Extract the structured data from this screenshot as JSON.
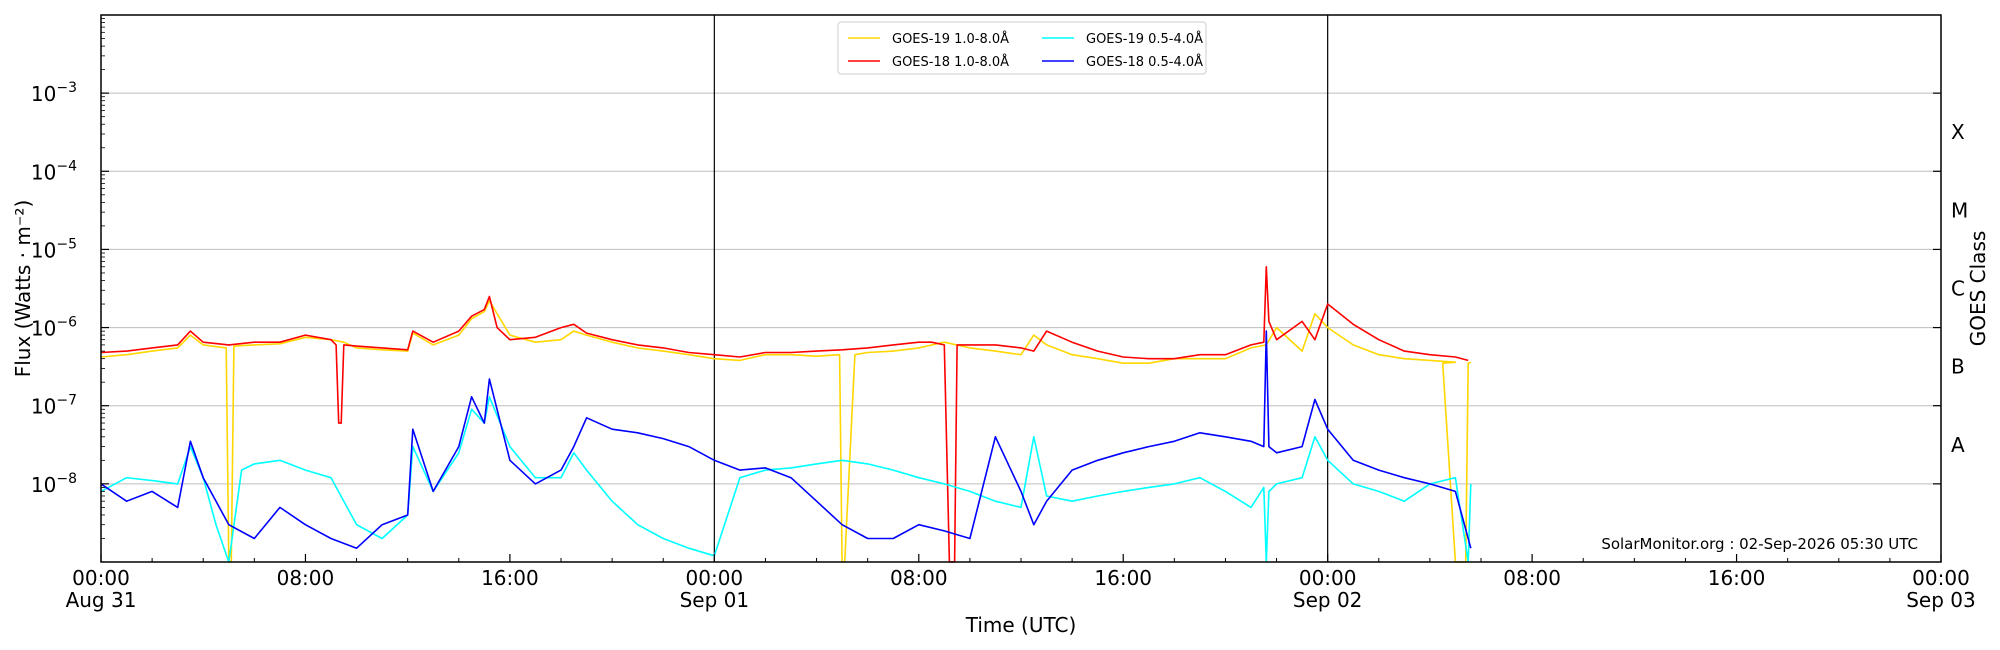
{
  "chart_data": {
    "type": "line",
    "xlabel": "Time (UTC)",
    "ylabel": "Flux (Watts · m⁻²)",
    "y2label": "GOES Class",
    "yscale": "log",
    "ylim": [
      1e-09,
      0.01
    ],
    "xlim_hours": [
      0,
      72
    ],
    "grid": "horizontal at decades",
    "legend_placement": "top-center",
    "credit": "SolarMonitor.org : 02-Sep-2026 05:30 UTC",
    "x_ticks": [
      {
        "hour": 0,
        "line1": "00:00",
        "line2": "Aug 31"
      },
      {
        "hour": 8,
        "line1": "08:00",
        "line2": ""
      },
      {
        "hour": 16,
        "line1": "16:00",
        "line2": ""
      },
      {
        "hour": 24,
        "line1": "00:00",
        "line2": "Sep 01"
      },
      {
        "hour": 32,
        "line1": "08:00",
        "line2": ""
      },
      {
        "hour": 40,
        "line1": "16:00",
        "line2": ""
      },
      {
        "hour": 48,
        "line1": "00:00",
        "line2": "Sep 02"
      },
      {
        "hour": 56,
        "line1": "08:00",
        "line2": ""
      },
      {
        "hour": 64,
        "line1": "16:00",
        "line2": ""
      },
      {
        "hour": 72,
        "line1": "00:00",
        "line2": "Sep 03"
      }
    ],
    "y_ticks": [
      {
        "exp": -8,
        "label": "10",
        "sup": "−8"
      },
      {
        "exp": -7,
        "label": "10",
        "sup": "−7"
      },
      {
        "exp": -6,
        "label": "10",
        "sup": "−6"
      },
      {
        "exp": -5,
        "label": "10",
        "sup": "−5"
      },
      {
        "exp": -4,
        "label": "10",
        "sup": "−4"
      },
      {
        "exp": -3,
        "label": "10",
        "sup": "−3"
      }
    ],
    "goes_classes": [
      {
        "label": "A",
        "exp": -7.5
      },
      {
        "label": "B",
        "exp": -6.5
      },
      {
        "label": "C",
        "exp": -5.5
      },
      {
        "label": "M",
        "exp": -4.5
      },
      {
        "label": "X",
        "exp": -3.5
      }
    ],
    "day_boundaries_hours": [
      24,
      48
    ],
    "series": [
      {
        "name": "GOES-19 1.0-8.0Å",
        "color": "#ffd700",
        "x": [
          0,
          1,
          2,
          3,
          3.5,
          4,
          4.9,
          5.0,
          5.1,
          5.2,
          6,
          7,
          8,
          9,
          9.5,
          10,
          11,
          12,
          12.2,
          13,
          14,
          14.5,
          15,
          15.2,
          16,
          17,
          18,
          18.5,
          19,
          20,
          21,
          22,
          23,
          24,
          25,
          26,
          27,
          28,
          28.9,
          29.0,
          29.1,
          29.5,
          30,
          31,
          32,
          33,
          34,
          35,
          36,
          36.5,
          37,
          38,
          39,
          40,
          41,
          42,
          43,
          44,
          45,
          45.6,
          46,
          47,
          47.5,
          48,
          49,
          50,
          51,
          52,
          53,
          52.5,
          53.0,
          53.4,
          53.5,
          53.6
        ],
        "y": [
          4.2e-07,
          4.5e-07,
          5e-07,
          5.5e-07,
          8e-07,
          6e-07,
          5.5e-07,
          1e-09,
          1e-09,
          5.8e-07,
          6e-07,
          6.2e-07,
          7.5e-07,
          7e-07,
          6.5e-07,
          5.5e-07,
          5.2e-07,
          5e-07,
          8.5e-07,
          6e-07,
          8e-07,
          1.3e-06,
          1.6e-06,
          2.2e-06,
          8e-07,
          6.5e-07,
          7e-07,
          9e-07,
          8e-07,
          6.5e-07,
          5.5e-07,
          5e-07,
          4.5e-07,
          4e-07,
          3.8e-07,
          4.5e-07,
          4.5e-07,
          4.3e-07,
          4.5e-07,
          1e-09,
          1e-09,
          4.5e-07,
          4.8e-07,
          5e-07,
          5.5e-07,
          6.5e-07,
          5.5e-07,
          5e-07,
          4.5e-07,
          8e-07,
          6e-07,
          4.5e-07,
          4e-07,
          3.5e-07,
          3.5e-07,
          4e-07,
          4e-07,
          4e-07,
          5.5e-07,
          6e-07,
          1e-06,
          5e-07,
          1.5e-06,
          1e-06,
          6e-07,
          4.5e-07,
          4e-07,
          3.8e-07,
          3.6e-07,
          3.5e-07,
          1e-09,
          1e-09,
          3.5e-07,
          3.6e-07
        ]
      },
      {
        "name": "GOES-18 1.0-8.0Å",
        "color": "#ff0000",
        "x": [
          0,
          1,
          2,
          3,
          3.5,
          4,
          5,
          6,
          7,
          8,
          9,
          9.2,
          9.3,
          9.4,
          9.5,
          10,
          11,
          12,
          12.2,
          13,
          14,
          14.5,
          15,
          15.2,
          15.5,
          16,
          17,
          18,
          18.5,
          19,
          20,
          21,
          22,
          23,
          24,
          25,
          26,
          27,
          28,
          29,
          30,
          31,
          32,
          32.5,
          33,
          33.2,
          33.3,
          33.4,
          33.5,
          34,
          35,
          36,
          36.5,
          37,
          38,
          39,
          40,
          41,
          42,
          43,
          44,
          45,
          45.5,
          45.6,
          45.7,
          46,
          47,
          47.5,
          48,
          49,
          50,
          51,
          52,
          53,
          53.5
        ],
        "y": [
          4.8e-07,
          5e-07,
          5.5e-07,
          6e-07,
          9e-07,
          6.5e-07,
          6e-07,
          6.5e-07,
          6.5e-07,
          8e-07,
          7e-07,
          6e-07,
          6e-08,
          6e-08,
          6e-07,
          5.8e-07,
          5.5e-07,
          5.2e-07,
          9e-07,
          6.5e-07,
          9e-07,
          1.4e-06,
          1.7e-06,
          2.5e-06,
          1e-06,
          7e-07,
          7.5e-07,
          1e-06,
          1.1e-06,
          8.5e-07,
          7e-07,
          6e-07,
          5.5e-07,
          4.8e-07,
          4.5e-07,
          4.2e-07,
          4.8e-07,
          4.8e-07,
          5e-07,
          5.2e-07,
          5.5e-07,
          6e-07,
          6.5e-07,
          6.5e-07,
          6e-07,
          1e-09,
          1e-09,
          1e-09,
          6e-07,
          6e-07,
          6e-07,
          5.5e-07,
          5e-07,
          9e-07,
          6.5e-07,
          5e-07,
          4.2e-07,
          4e-07,
          4e-07,
          4.5e-07,
          4.5e-07,
          6e-07,
          6.5e-07,
          6e-06,
          1.2e-06,
          7e-07,
          1.2e-06,
          7e-07,
          2e-06,
          1.1e-06,
          7e-07,
          5e-07,
          4.5e-07,
          4.2e-07,
          3.8e-07
        ]
      },
      {
        "name": "GOES-19 0.5-4.0Å",
        "color": "#00ffff",
        "x": [
          0,
          1,
          2,
          3,
          3.5,
          4,
          4.5,
          5,
          5.5,
          6,
          7,
          8,
          9,
          10,
          11,
          12,
          12.2,
          13,
          14,
          14.5,
          15,
          15.2,
          16,
          17,
          18,
          18.5,
          19,
          20,
          21,
          22,
          23,
          24,
          25,
          26,
          27,
          28,
          29,
          30,
          31,
          32,
          33,
          34,
          35,
          36,
          36.5,
          37,
          38,
          39,
          40,
          41,
          42,
          43,
          44,
          45,
          45.5,
          45.6,
          45.7,
          46,
          47,
          47.5,
          48,
          49,
          50,
          51,
          52,
          53,
          53.5,
          53.6
        ],
        "y": [
          8e-09,
          1.2e-08,
          1.1e-08,
          1e-08,
          3e-08,
          1.2e-08,
          3e-09,
          1e-09,
          1.5e-08,
          1.8e-08,
          2e-08,
          1.5e-08,
          1.2e-08,
          3e-09,
          2e-09,
          4e-09,
          3e-08,
          8e-09,
          2.5e-08,
          9e-08,
          6e-08,
          1.3e-07,
          3e-08,
          1.2e-08,
          1.2e-08,
          2.5e-08,
          1.5e-08,
          6e-09,
          3e-09,
          2e-09,
          1.5e-09,
          1.2e-09,
          1.2e-08,
          1.5e-08,
          1.6e-08,
          1.8e-08,
          2e-08,
          1.8e-08,
          1.5e-08,
          1.2e-08,
          1e-08,
          8e-09,
          6e-09,
          5e-09,
          4e-08,
          7e-09,
          6e-09,
          7e-09,
          8e-09,
          9e-09,
          1e-08,
          1.2e-08,
          8e-09,
          5e-09,
          9e-09,
          1e-09,
          8e-09,
          1e-08,
          1.2e-08,
          4e-08,
          2e-08,
          1e-08,
          8e-09,
          6e-09,
          1e-08,
          1.2e-08,
          1e-09,
          1e-08
        ]
      },
      {
        "name": "GOES-18 0.5-4.0Å",
        "color": "#0000ff",
        "x": [
          0,
          1,
          2,
          3,
          3.5,
          4,
          5,
          6,
          7,
          8,
          9,
          10,
          11,
          12,
          12.2,
          13,
          14,
          14.5,
          15,
          15.2,
          16,
          17,
          18,
          18.5,
          19,
          20,
          21,
          22,
          23,
          24,
          25,
          26,
          27,
          28,
          29,
          30,
          31,
          32,
          33,
          34,
          35,
          36,
          36.5,
          37,
          38,
          39,
          40,
          41,
          42,
          43,
          44,
          45,
          45.5,
          45.6,
          45.7,
          46,
          47,
          47.5,
          48,
          49,
          50,
          51,
          52,
          53,
          53.5,
          53.6
        ],
        "y": [
          1e-08,
          6e-09,
          8e-09,
          5e-09,
          3.5e-08,
          1.2e-08,
          3e-09,
          2e-09,
          5e-09,
          3e-09,
          2e-09,
          1.5e-09,
          3e-09,
          4e-09,
          5e-08,
          8e-09,
          3e-08,
          1.3e-07,
          6e-08,
          2.2e-07,
          2e-08,
          1e-08,
          1.5e-08,
          3e-08,
          7e-08,
          5e-08,
          4.5e-08,
          3.8e-08,
          3e-08,
          2e-08,
          1.5e-08,
          1.6e-08,
          1.2e-08,
          6e-09,
          3e-09,
          2e-09,
          2e-09,
          3e-09,
          2.5e-09,
          2e-09,
          4e-08,
          8e-09,
          3e-09,
          6e-09,
          1.5e-08,
          2e-08,
          2.5e-08,
          3e-08,
          3.5e-08,
          4.5e-08,
          4e-08,
          3.5e-08,
          3e-08,
          9e-07,
          3e-08,
          2.5e-08,
          3e-08,
          1.2e-07,
          5e-08,
          2e-08,
          1.5e-08,
          1.2e-08,
          1e-08,
          8e-09,
          2e-09,
          1.5e-09
        ]
      }
    ]
  }
}
